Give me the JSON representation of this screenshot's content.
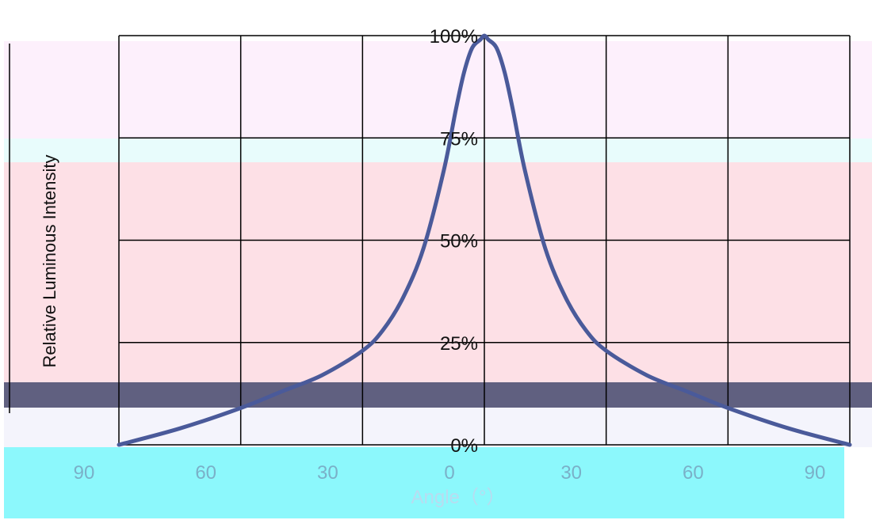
{
  "chart_data": {
    "type": "line",
    "xlabel": "Angle（°）",
    "ylabel": "Relative Luminous Intensity",
    "xlim": [
      -90,
      90
    ],
    "ylim": [
      0,
      100
    ],
    "x_ticks": [
      -90,
      -60,
      -30,
      0,
      30,
      60,
      90
    ],
    "x_tick_labels": [
      "90",
      "60",
      "30",
      "0",
      "30",
      "60",
      "90"
    ],
    "y_ticks": [
      0,
      25,
      50,
      75,
      100
    ],
    "y_tick_labels": [
      "0%",
      "25%",
      "50%",
      "75%",
      "100%"
    ],
    "grid": true,
    "series": [
      {
        "x": [
          -90,
          -75,
          -60,
          -50,
          -40,
          -30,
          -25,
          -20,
          -15,
          -10,
          -7,
          -5,
          -3,
          -1,
          0,
          1,
          3,
          5,
          7,
          10,
          15,
          20,
          25,
          30,
          40,
          50,
          60,
          75,
          90
        ],
        "y": [
          0,
          4,
          9,
          13,
          17,
          23,
          28,
          36,
          48,
          67,
          82,
          91,
          97,
          99,
          100,
          99,
          97,
          91,
          82,
          67,
          48,
          36,
          28,
          23,
          17,
          13,
          9,
          4,
          0
        ],
        "color": "#4a5a9a"
      }
    ]
  },
  "colors": {
    "band_top": "#fdf0fc",
    "band_mid": "#fde0e6",
    "band_dark": "#606080",
    "band_cyan": "#8cf8fc",
    "grid": "#000000",
    "curve": "#4a5a9a"
  }
}
